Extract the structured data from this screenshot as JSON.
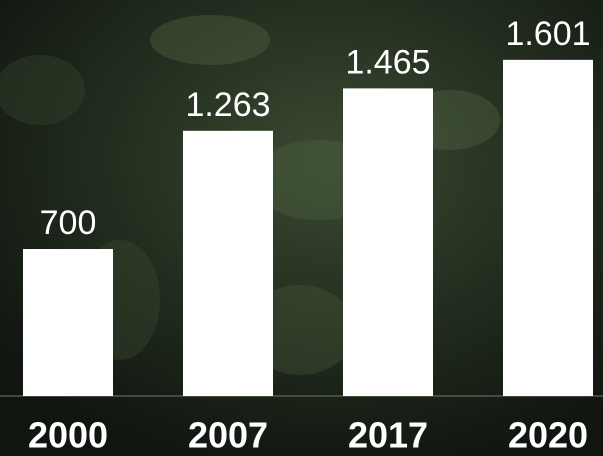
{
  "chart_data": {
    "type": "bar",
    "categories": [
      "2000",
      "2007",
      "2017",
      "2020"
    ],
    "values": [
      700,
      1263,
      1465,
      1601
    ],
    "value_labels": [
      "700",
      "1.263",
      "1.465",
      "1.601"
    ],
    "color": "#ffffff",
    "ylim": [
      0,
      1886
    ]
  }
}
